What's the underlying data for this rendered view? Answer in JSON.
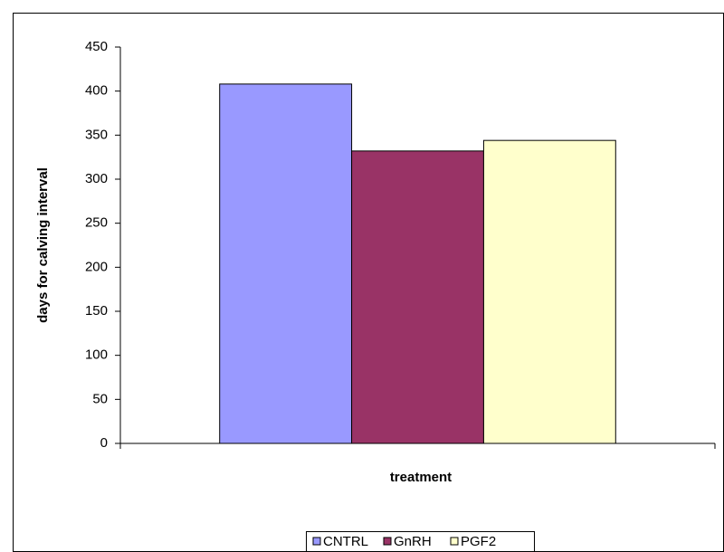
{
  "chart_data": {
    "type": "bar",
    "y_label": "days  for calving interval",
    "x_label": "treatment",
    "categories": [
      null
    ],
    "series": [
      {
        "name": "CNTRL",
        "color": "#9999ff",
        "values": [
          408
        ]
      },
      {
        "name": "GnRH",
        "color": "#993366",
        "values": [
          332
        ]
      },
      {
        "name": "PGF2",
        "color": "#ffffcc",
        "values": [
          344
        ]
      }
    ],
    "ylim": [
      0,
      450
    ],
    "yticks": [
      0,
      50,
      100,
      150,
      200,
      250,
      300,
      350,
      400,
      450
    ],
    "legend": "bottom"
  }
}
